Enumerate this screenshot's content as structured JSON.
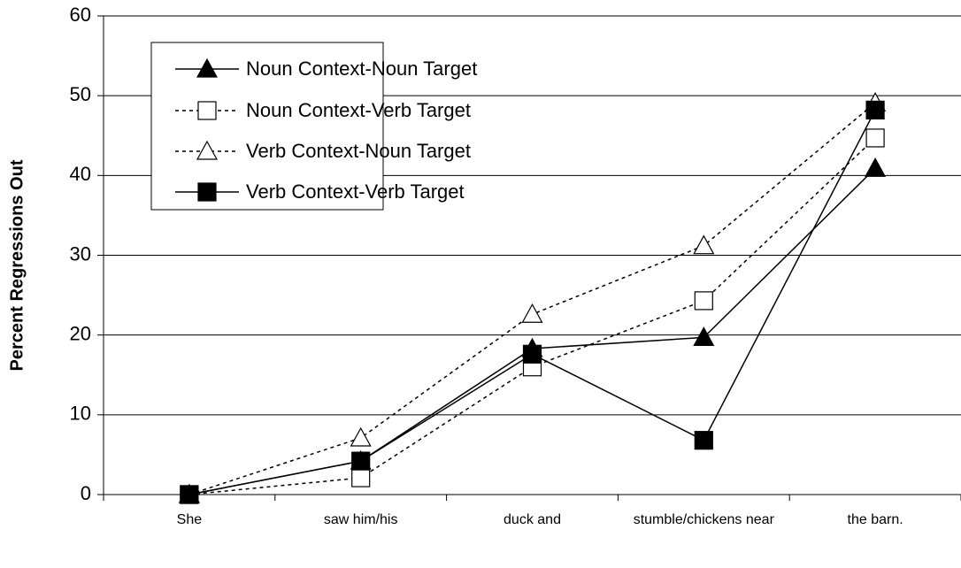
{
  "chart_data": {
    "type": "line",
    "ylabel": "Percent Regressions Out",
    "categories": [
      "She",
      "saw him/his",
      "duck and",
      "stumble/chickens near",
      "the barn."
    ],
    "series": [
      {
        "name": "Noun Context-Noun Target",
        "color": "#000000",
        "dashed": false,
        "marker": "triangle",
        "filled": true,
        "values": [
          0,
          4.2,
          18.3,
          19.7,
          40.9
        ]
      },
      {
        "name": "Noun Context-Verb Target",
        "color": "#000000",
        "dashed": true,
        "marker": "square",
        "filled": false,
        "values": [
          0,
          2.1,
          16,
          24.3,
          44.7
        ]
      },
      {
        "name": "Verb Context-Noun Target",
        "color": "#000000",
        "dashed": true,
        "marker": "triangle",
        "filled": false,
        "values": [
          0,
          7.1,
          22.6,
          31.2,
          49.1
        ]
      },
      {
        "name": "Verb Context-Verb Target",
        "color": "#000000",
        "dashed": false,
        "marker": "square",
        "filled": true,
        "values": [
          0,
          4.2,
          17.6,
          6.8,
          48.2
        ]
      }
    ],
    "ylim": [
      0,
      60
    ],
    "yticks": [
      0,
      10,
      20,
      30,
      40,
      50,
      60
    ],
    "grid": true,
    "legend": "upper left"
  }
}
